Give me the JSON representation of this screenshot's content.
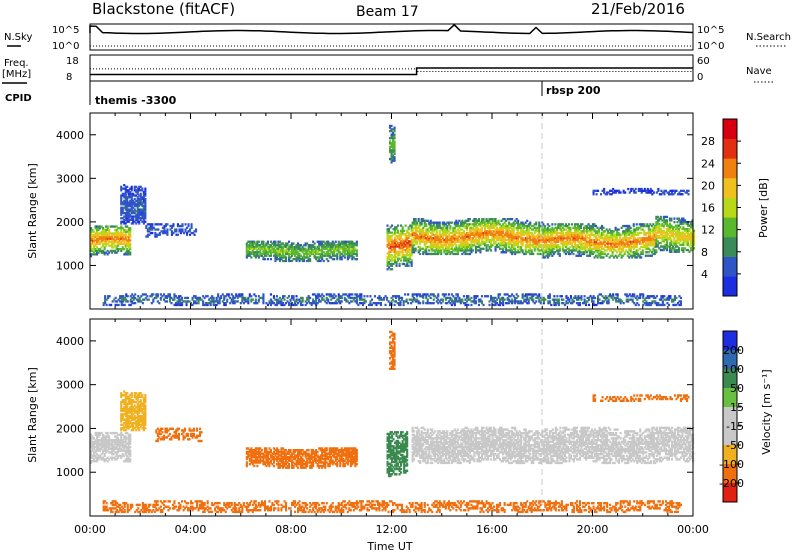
{
  "header": {
    "station_title": "Blackstone (fitACF)",
    "beam_label": "Beam 17",
    "date_label": "21/Feb/2016"
  },
  "status_panel": {
    "left_labels": [
      "N.Sky",
      "Freq.",
      "[MHz]",
      "CPID"
    ],
    "right_labels": [
      "N.Search",
      "Nave"
    ],
    "nsky_ticks": [
      "10^5",
      "10^0"
    ],
    "freq_ticks": [
      "18",
      "8"
    ],
    "nave_ticks": [
      "60",
      "0"
    ],
    "cpid_events": [
      {
        "time_hours": 0.0,
        "label": "themis -3300"
      },
      {
        "time_hours": 18.0,
        "label": "rbsp 200"
      }
    ],
    "freq_series": {
      "times_hours": [
        0,
        13.0,
        13.0,
        24
      ],
      "values_mhz": [
        10.5,
        10.5,
        13.0,
        13.0
      ]
    },
    "nave_series": {
      "times_hours": [
        0,
        13.0,
        13.0,
        24
      ],
      "values": [
        28,
        28,
        22,
        22
      ]
    }
  },
  "chart_data": [
    {
      "type": "heatmap",
      "name": "power",
      "xlabel": "",
      "ylabel": "Slant Range [km]",
      "xlim": [
        0,
        24
      ],
      "ylim": [
        0,
        4500
      ],
      "yticks": [
        "1000",
        "2000",
        "3000",
        "4000"
      ],
      "colorbar_label": "Power [dB]",
      "colorbar_ticks": [
        "4",
        "8",
        "12",
        "16",
        "20",
        "24",
        "28"
      ],
      "colorbar_range": [
        0,
        32
      ],
      "colorbar_colors": [
        "#1c2ee0",
        "#2f54c8",
        "#3a8a5a",
        "#5ab82e",
        "#b8d818",
        "#f0c020",
        "#f08010",
        "#e03010",
        "#d80010"
      ],
      "features": [
        {
          "t0": 0.0,
          "t1": 1.6,
          "center_km": 1550,
          "halfwidth_km": 350,
          "value_center": 24,
          "value_edge": 6
        },
        {
          "t0": 1.2,
          "t1": 2.2,
          "center_km": 2400,
          "halfwidth_km": 450,
          "value_center": 6,
          "value_edge": 4
        },
        {
          "t0": 2.2,
          "t1": 4.2,
          "center_km": 1800,
          "halfwidth_km": 150,
          "value_center": 6,
          "value_edge": 4
        },
        {
          "t0": 6.2,
          "t1": 10.6,
          "center_km": 1320,
          "halfwidth_km": 230,
          "value_center": 14,
          "value_edge": 6
        },
        {
          "t0": 11.9,
          "t1": 12.1,
          "center_km": 3800,
          "halfwidth_km": 450,
          "value_center": 12,
          "value_edge": 6
        },
        {
          "t0": 11.8,
          "t1": 12.8,
          "center_km": 1400,
          "halfwidth_km": 500,
          "value_center": 26,
          "value_edge": 6
        },
        {
          "t0": 12.8,
          "t1": 18.0,
          "center_km": 1650,
          "halfwidth_km": 400,
          "value_center": 24,
          "value_edge": 6
        },
        {
          "t0": 18.0,
          "t1": 22.5,
          "center_km": 1550,
          "halfwidth_km": 380,
          "value_center": 24,
          "value_edge": 6
        },
        {
          "t0": 22.5,
          "t1": 24.0,
          "center_km": 1700,
          "halfwidth_km": 400,
          "value_center": 20,
          "value_edge": 6
        },
        {
          "t0": 20.0,
          "t1": 23.8,
          "center_km": 2680,
          "halfwidth_km": 60,
          "value_center": 4,
          "value_edge": 4
        },
        {
          "t0": 0.5,
          "t1": 23.5,
          "center_km": 200,
          "halfwidth_km": 120,
          "value_center": 8,
          "value_edge": 4
        }
      ]
    },
    {
      "type": "heatmap",
      "name": "velocity",
      "xlabel": "Time UT",
      "ylabel": "Slant Range [km]",
      "xlim": [
        0,
        24
      ],
      "ylim": [
        0,
        4500
      ],
      "xticks": [
        "00:00",
        "04:00",
        "08:00",
        "12:00",
        "16:00",
        "20:00",
        "00:00"
      ],
      "yticks": [
        "1000",
        "2000",
        "3000",
        "4000"
      ],
      "colorbar_label": "Velocity [m s⁻¹]",
      "colorbar_ticks": [
        "200",
        "100",
        "50",
        "15",
        "-15",
        "-50",
        "-100",
        "-200"
      ],
      "colorbar_colors": [
        "#1c2ee0",
        "#2e6ab0",
        "#3a8a50",
        "#68c040",
        "#c8c8c8",
        "#c8c8c8",
        "#f0b020",
        "#f07010",
        "#e02010"
      ],
      "features": [
        {
          "t0": 0.0,
          "t1": 1.6,
          "center_km": 1550,
          "halfwidth_km": 350,
          "velocity": 0
        },
        {
          "t0": 1.2,
          "t1": 2.2,
          "center_km": 2400,
          "halfwidth_km": 450,
          "velocity": -40
        },
        {
          "t0": 2.6,
          "t1": 4.4,
          "center_km": 1850,
          "halfwidth_km": 150,
          "velocity": -60
        },
        {
          "t0": 6.2,
          "t1": 10.6,
          "center_km": 1320,
          "halfwidth_km": 230,
          "velocity": -60
        },
        {
          "t0": 11.9,
          "t1": 12.1,
          "center_km": 3800,
          "halfwidth_km": 450,
          "velocity": -80
        },
        {
          "t0": 11.8,
          "t1": 12.6,
          "center_km": 1400,
          "halfwidth_km": 500,
          "velocity": 40
        },
        {
          "t0": 12.8,
          "t1": 24.0,
          "center_km": 1600,
          "halfwidth_km": 400,
          "velocity": 0
        },
        {
          "t0": 20.0,
          "t1": 23.8,
          "center_km": 2680,
          "halfwidth_km": 60,
          "velocity": -80
        },
        {
          "t0": 0.5,
          "t1": 23.5,
          "center_km": 200,
          "halfwidth_km": 120,
          "velocity": -60
        }
      ]
    }
  ]
}
